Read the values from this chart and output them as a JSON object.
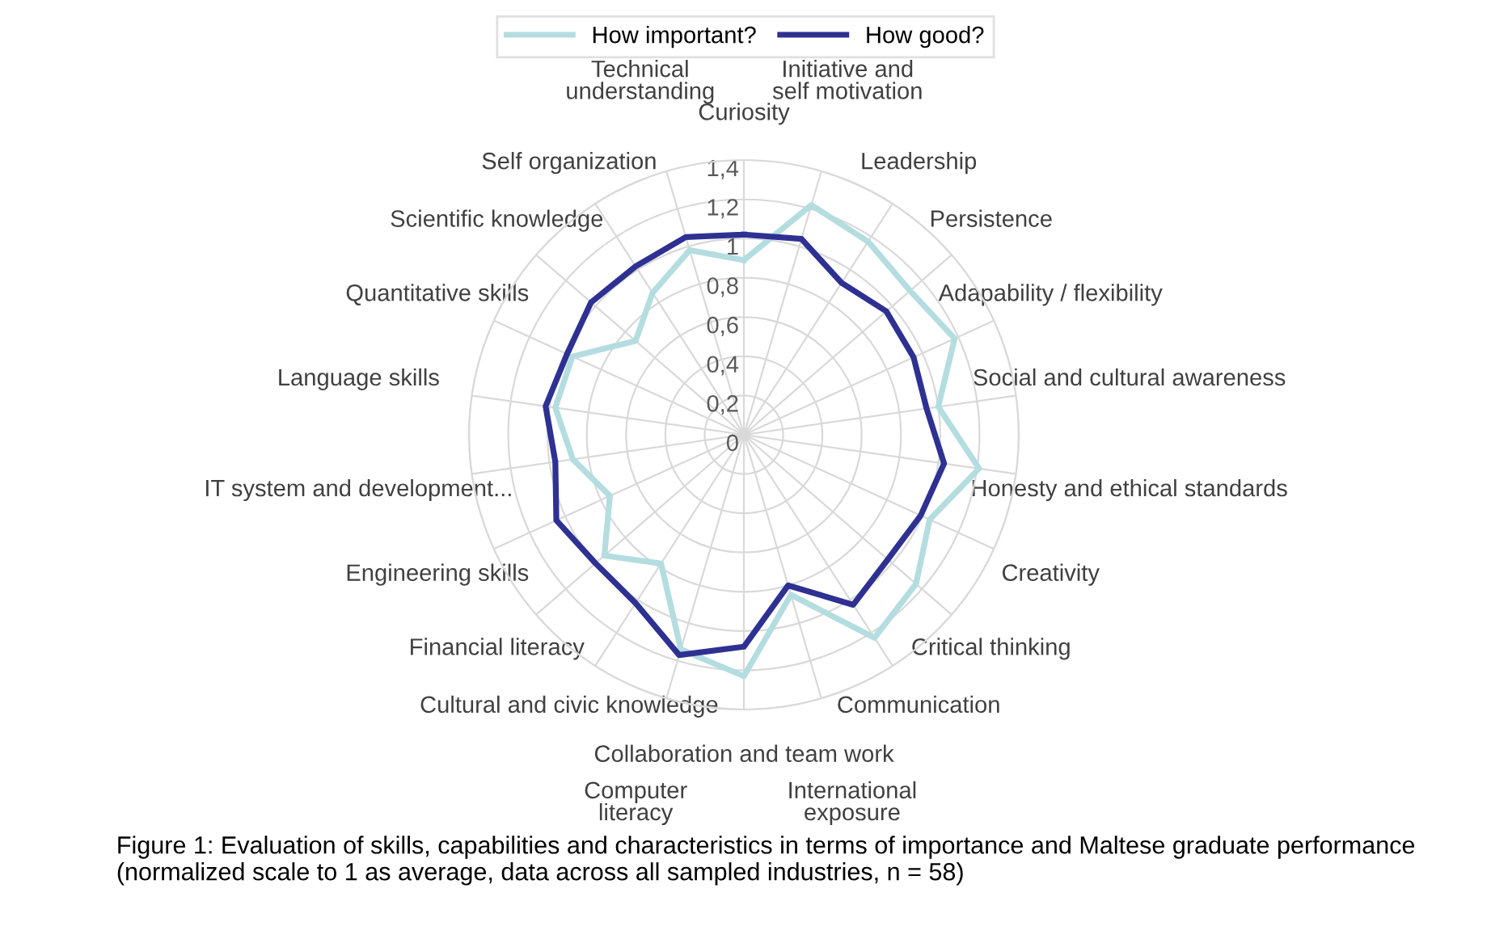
{
  "chart_data": {
    "type": "radar",
    "categories": [
      "Curiosity",
      "Initiative and self motivation",
      "Leadership",
      "Persistence",
      "Adapability / flexibility",
      "Social and cultural awareness",
      "Honesty and ethical standards",
      "Creativity",
      "Critical thinking",
      "Communication",
      "International exposure",
      "Collaboration and team work",
      "Computer literacy",
      "Cultural and civic knowledge",
      "Financial literacy",
      "Engineering skills",
      "IT system and development...",
      "Language skills",
      "Quantitative skills",
      "Scientific knowledge",
      "Self organization",
      "Technical understanding"
    ],
    "series": [
      {
        "name": "How important?",
        "color": "#b4dde0",
        "values": [
          0.89,
          1.22,
          1.17,
          1.12,
          1.18,
          1.0,
          1.21,
          1.04,
          1.16,
          1.23,
          0.85,
          1.23,
          1.14,
          0.78,
          0.94,
          0.75,
          0.88,
          0.97,
          0.96,
          0.73,
          0.86,
          0.98
        ]
      },
      {
        "name": "How good?",
        "color": "#2e3192",
        "values": [
          1.02,
          1.04,
          0.92,
          0.96,
          0.95,
          0.94,
          1.03,
          0.99,
          0.97,
          1.03,
          0.8,
          1.08,
          1.17,
          1.02,
          1.0,
          1.05,
          0.97,
          1.02,
          0.99,
          1.03,
          1.02,
          1.05
        ]
      }
    ],
    "ylim": [
      0,
      1.4
    ],
    "yticks": [
      {
        "value": 0,
        "label": "0"
      },
      {
        "value": 0.2,
        "label": "0,2"
      },
      {
        "value": 0.4,
        "label": "0,4"
      },
      {
        "value": 0.6,
        "label": "0,6"
      },
      {
        "value": 0.8,
        "label": "0,8"
      },
      {
        "value": 1,
        "label": "1"
      },
      {
        "value": 1.2,
        "label": "1,2"
      },
      {
        "value": 1.4,
        "label": "1,4"
      }
    ],
    "grid": true,
    "legend": "top",
    "marker": "none",
    "line_style": "solid",
    "annotations": [
      "Figure 1: Evaluation of skills, capabilities and characteristics in terms of importance and Maltese graduate performance (normalized scale to 1 as average, data across all sampled industries, n = 58)"
    ]
  }
}
